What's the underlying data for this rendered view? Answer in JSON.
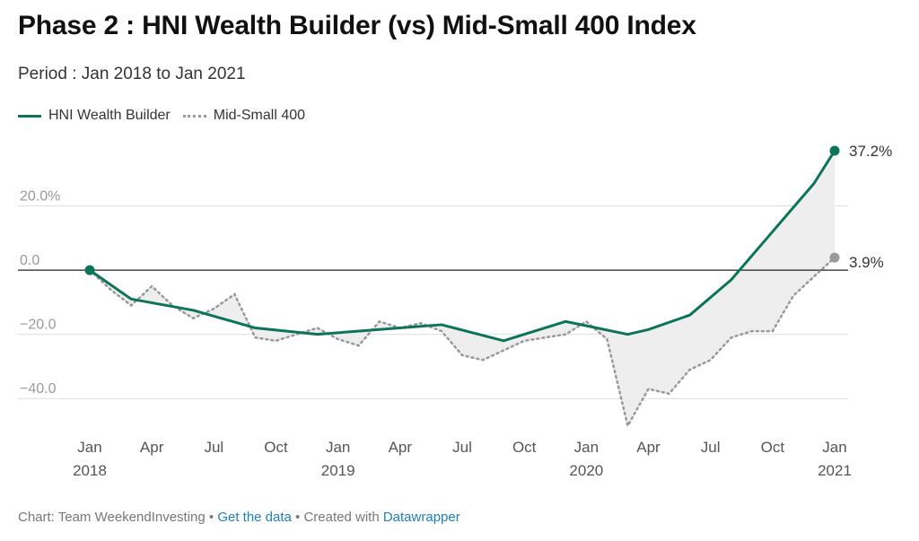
{
  "header": {
    "title": "Phase 2 : HNI Wealth Builder (vs) Mid-Small 400 Index",
    "subtitle": "Period : Jan 2018 to Jan 2021"
  },
  "legend": {
    "items": [
      "HNI Wealth Builder",
      "Mid-Small 400"
    ]
  },
  "footer": {
    "prefix": "Chart: Team WeekendInvesting • ",
    "get_data": "Get the data",
    "middle": " • Created with ",
    "tool": "Datawrapper"
  },
  "colors": {
    "hni": "#0c7559",
    "mid": "#9a9a9a",
    "fill": "#eeeeee",
    "grid": "#dddddd",
    "zero": "#222222"
  },
  "chart_data": {
    "type": "line",
    "title": "Phase 2 : HNI Wealth Builder (vs) Mid-Small 400 Index",
    "subtitle": "Period : Jan 2018 to Jan 2021",
    "xlabel": "",
    "ylabel": "",
    "x_ticks": [
      {
        "label": "Jan",
        "year": "2018",
        "x": "2018-01"
      },
      {
        "label": "Apr",
        "year": "",
        "x": "2018-04"
      },
      {
        "label": "Jul",
        "year": "",
        "x": "2018-07"
      },
      {
        "label": "Oct",
        "year": "",
        "x": "2018-10"
      },
      {
        "label": "Jan",
        "year": "2019",
        "x": "2019-01"
      },
      {
        "label": "Apr",
        "year": "",
        "x": "2019-04"
      },
      {
        "label": "Jul",
        "year": "",
        "x": "2019-07"
      },
      {
        "label": "Oct",
        "year": "",
        "x": "2019-10"
      },
      {
        "label": "Jan",
        "year": "2020",
        "x": "2020-01"
      },
      {
        "label": "Apr",
        "year": "",
        "x": "2020-04"
      },
      {
        "label": "Jul",
        "year": "",
        "x": "2020-07"
      },
      {
        "label": "Oct",
        "year": "",
        "x": "2020-10"
      },
      {
        "label": "Jan",
        "year": "2021",
        "x": "2021-01"
      }
    ],
    "y_ticks": [
      {
        "value": 20,
        "label": "20.0%"
      },
      {
        "value": 0,
        "label": "0.0"
      },
      {
        "value": -20,
        "label": "−20.0"
      },
      {
        "value": -40,
        "label": "−40.0"
      }
    ],
    "ylim": [
      -50,
      40
    ],
    "grid": true,
    "legend_position": "top-left",
    "series": [
      {
        "name": "HNI Wealth Builder",
        "style": "solid",
        "end_label": "37.2%",
        "points": [
          [
            "2018-01",
            0
          ],
          [
            "2018-03",
            -9
          ],
          [
            "2018-06",
            -12.5
          ],
          [
            "2018-09",
            -18
          ],
          [
            "2018-12",
            -20
          ],
          [
            "2019-03",
            -18.5
          ],
          [
            "2019-06",
            -17
          ],
          [
            "2019-09",
            -22
          ],
          [
            "2019-12",
            -16
          ],
          [
            "2020-03",
            -20
          ],
          [
            "2020-04",
            -18.5
          ],
          [
            "2020-06",
            -14
          ],
          [
            "2020-08",
            -3
          ],
          [
            "2020-10",
            12
          ],
          [
            "2020-12",
            27
          ],
          [
            "2021-01",
            37.2
          ]
        ]
      },
      {
        "name": "Mid-Small 400",
        "style": "dotted",
        "end_label": "3.9%",
        "points": [
          [
            "2018-01",
            0
          ],
          [
            "2018-02",
            -6
          ],
          [
            "2018-03",
            -11
          ],
          [
            "2018-04",
            -5
          ],
          [
            "2018-05",
            -11
          ],
          [
            "2018-06",
            -15
          ],
          [
            "2018-07",
            -12
          ],
          [
            "2018-08",
            -7.5
          ],
          [
            "2018-09",
            -21
          ],
          [
            "2018-10",
            -22
          ],
          [
            "2018-11",
            -20
          ],
          [
            "2018-12",
            -18
          ],
          [
            "2019-01",
            -21.5
          ],
          [
            "2019-02",
            -23.5
          ],
          [
            "2019-03",
            -16
          ],
          [
            "2019-04",
            -18
          ],
          [
            "2019-05",
            -16.5
          ],
          [
            "2019-06",
            -19
          ],
          [
            "2019-07",
            -26.5
          ],
          [
            "2019-08",
            -28
          ],
          [
            "2019-09",
            -25
          ],
          [
            "2019-10",
            -22
          ],
          [
            "2019-11",
            -21
          ],
          [
            "2019-12",
            -20
          ],
          [
            "2020-01",
            -16
          ],
          [
            "2020-02",
            -21.5
          ],
          [
            "2020-03",
            -48.5
          ],
          [
            "2020-04",
            -37
          ],
          [
            "2020-05",
            -38.5
          ],
          [
            "2020-06",
            -31
          ],
          [
            "2020-07",
            -28
          ],
          [
            "2020-08",
            -21
          ],
          [
            "2020-09",
            -19
          ],
          [
            "2020-10",
            -19
          ],
          [
            "2020-11",
            -8
          ],
          [
            "2020-12",
            -2
          ],
          [
            "2021-01",
            3.9
          ]
        ]
      }
    ]
  }
}
